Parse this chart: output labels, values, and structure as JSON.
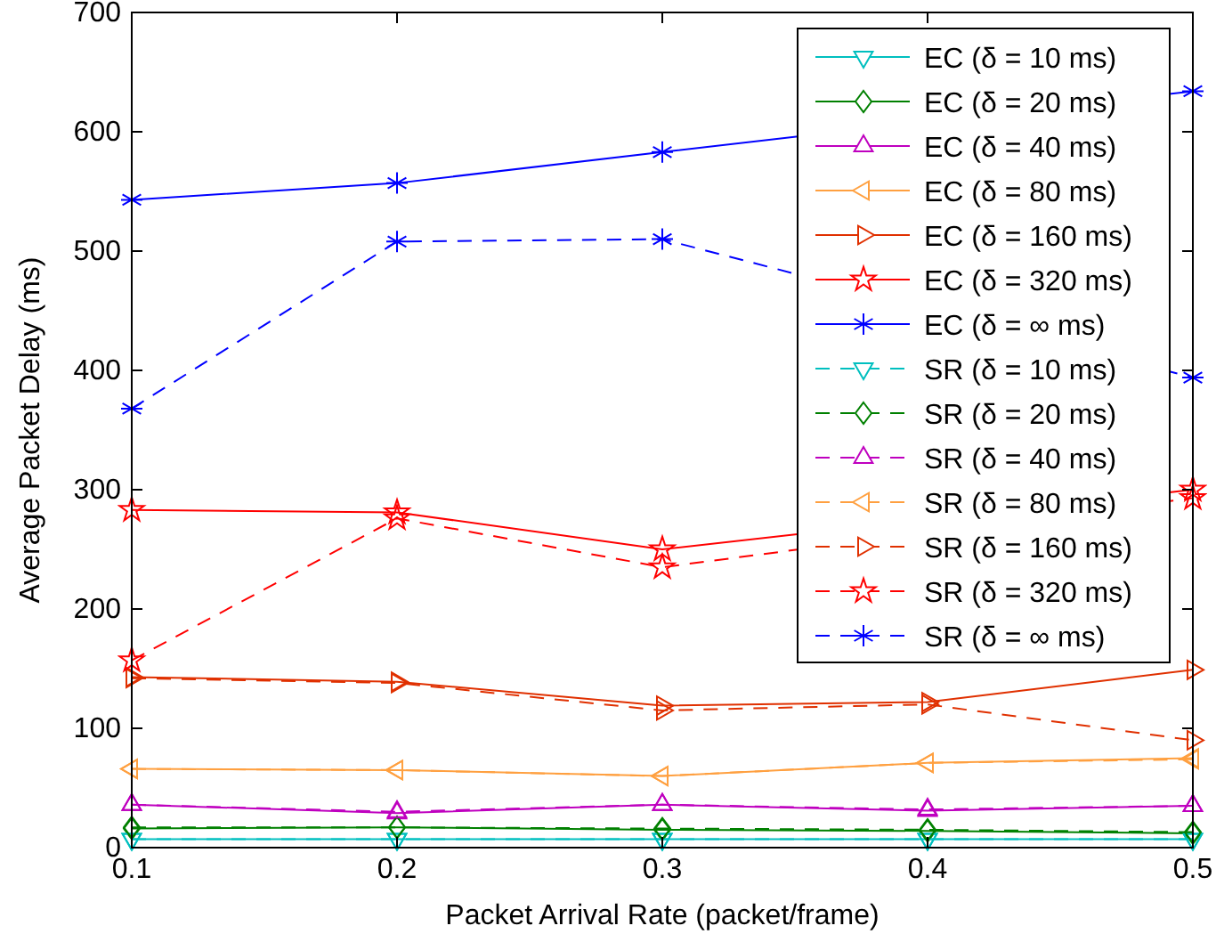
{
  "chart_data": {
    "type": "line",
    "xlabel": "Packet Arrival Rate (packet/frame)",
    "ylabel": "Average Packet Delay (ms)",
    "x": [
      0.1,
      0.2,
      0.3,
      0.4,
      0.5
    ],
    "xlim": [
      0.1,
      0.5
    ],
    "xticks": [
      0.1,
      0.2,
      0.3,
      0.4,
      0.5
    ],
    "ylim": [
      0,
      700
    ],
    "yticks": [
      0,
      100,
      200,
      300,
      400,
      500,
      600,
      700
    ],
    "grid": false,
    "legend": "top right",
    "series": [
      {
        "name": "EC (δ = 10 ms)",
        "color": "#00bfbf",
        "marker": "triangle-down",
        "line_style": "solid",
        "values": [
          7,
          7,
          7,
          7,
          7
        ]
      },
      {
        "name": "EC (δ = 20 ms)",
        "color": "#008000",
        "marker": "diamond",
        "line_style": "solid",
        "values": [
          16,
          17,
          15,
          14,
          12
        ]
      },
      {
        "name": "EC (δ = 40 ms)",
        "color": "#bf00bf",
        "marker": "triangle",
        "line_style": "solid",
        "values": [
          36,
          29,
          36,
          31,
          35
        ]
      },
      {
        "name": "EC (δ = 80 ms)",
        "color": "#ffa040",
        "marker": "triangle-left",
        "line_style": "solid",
        "values": [
          66,
          65,
          60,
          71,
          75
        ]
      },
      {
        "name": "EC (δ = 160 ms)",
        "color": "#e03000",
        "marker": "triangle-right",
        "line_style": "solid",
        "values": [
          143,
          139,
          119,
          122,
          149
        ]
      },
      {
        "name": "EC (δ = 320 ms)",
        "color": "#ff0000",
        "marker": "star",
        "line_style": "solid",
        "values": [
          283,
          281,
          250,
          null,
          300
        ]
      },
      {
        "name": "EC (δ = ∞ ms)",
        "color": "#0000ff",
        "marker": "cross",
        "line_style": "solid",
        "values": [
          543,
          557,
          583,
          null,
          634
        ]
      },
      {
        "name": "SR (δ = 10 ms)",
        "color": "#00bfbf",
        "marker": "triangle-down",
        "line_style": "dashed",
        "values": [
          7,
          7,
          7,
          7,
          7
        ]
      },
      {
        "name": "SR (δ = 20 ms)",
        "color": "#008000",
        "marker": "diamond",
        "line_style": "dashed",
        "values": [
          17,
          17,
          16,
          15,
          13
        ]
      },
      {
        "name": "SR (δ = 40 ms)",
        "color": "#bf00bf",
        "marker": "triangle",
        "line_style": "dashed",
        "values": [
          36,
          30,
          36,
          32,
          35
        ]
      },
      {
        "name": "SR (δ = 80 ms)",
        "color": "#ffa040",
        "marker": "triangle-left",
        "line_style": "dashed",
        "values": [
          66,
          65,
          60,
          71,
          74
        ]
      },
      {
        "name": "SR (δ = 160 ms)",
        "color": "#e03000",
        "marker": "triangle-right",
        "line_style": "dashed",
        "values": [
          142,
          138,
          115,
          120,
          90
        ]
      },
      {
        "name": "SR (δ = 320 ms)",
        "color": "#ff0000",
        "marker": "star",
        "line_style": "dashed",
        "values": [
          157,
          276,
          235,
          null,
          293
        ]
      },
      {
        "name": "SR (δ = ∞ ms)",
        "color": "#0000ff",
        "marker": "cross",
        "line_style": "dashed",
        "values": [
          368,
          508,
          510,
          null,
          394
        ]
      }
    ]
  }
}
